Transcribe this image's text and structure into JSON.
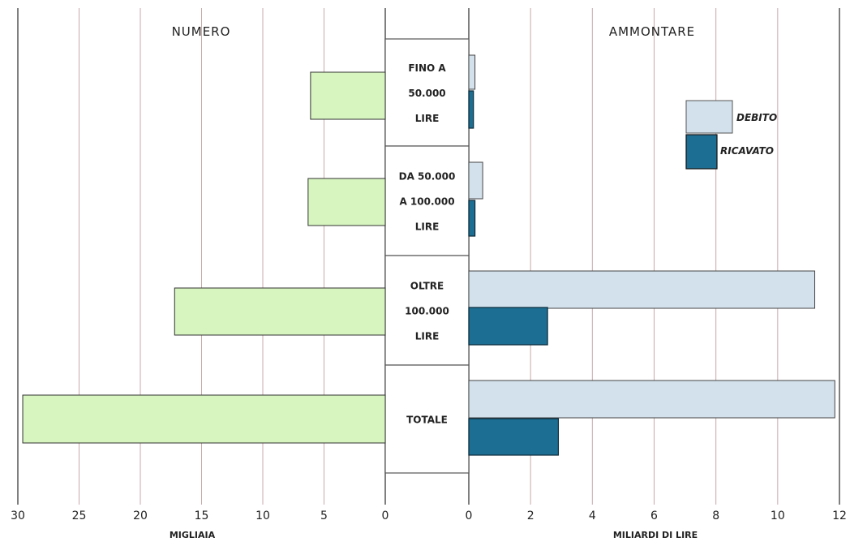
{
  "colors": {
    "numero": "#d6f5bf",
    "debito": "#d2e1ec",
    "ricavato": "#1d6e93",
    "grid": "#c9a9a9",
    "frame": "#555555"
  },
  "chart_data": [
    {
      "type": "bar",
      "orientation": "horizontal",
      "direction": "right-to-left",
      "title": "NUMERO",
      "xlabel": "MIGLIAIA",
      "xlim": [
        0,
        30
      ],
      "x_ticks": [
        0,
        5,
        10,
        15,
        20,
        25,
        30
      ],
      "grid": true,
      "categories": [
        "FINO A 50.000 LIRE",
        "DA 50.000 A 100.000 LIRE",
        "OLTRE 100.000 LIRE",
        "TOTALE"
      ],
      "values": [
        6.1,
        6.3,
        17.2,
        29.6
      ]
    },
    {
      "type": "bar",
      "orientation": "horizontal",
      "title": "AMMONTARE",
      "xlabel": "MILIARDI DI LIRE",
      "xlim": [
        0,
        12
      ],
      "x_ticks": [
        0,
        2,
        4,
        6,
        8,
        10,
        12
      ],
      "grid": true,
      "legend_position": "top-right",
      "categories": [
        "FINO A 50.000 LIRE",
        "DA 50.000 A 100.000 LIRE",
        "OLTRE 100.000 LIRE",
        "TOTALE"
      ],
      "series": [
        {
          "name": "DEBITO",
          "values": [
            0.2,
            0.45,
            11.2,
            11.85
          ]
        },
        {
          "name": "RICAVATO",
          "values": [
            0.15,
            0.2,
            2.55,
            2.9
          ]
        }
      ]
    }
  ],
  "category_labels": [
    [
      "FINO A",
      "50.000",
      "LIRE"
    ],
    [
      "DA 50.000",
      "A 100.000",
      "LIRE"
    ],
    [
      "OLTRE",
      "100.000",
      "LIRE"
    ],
    [
      "TOTALE"
    ]
  ]
}
